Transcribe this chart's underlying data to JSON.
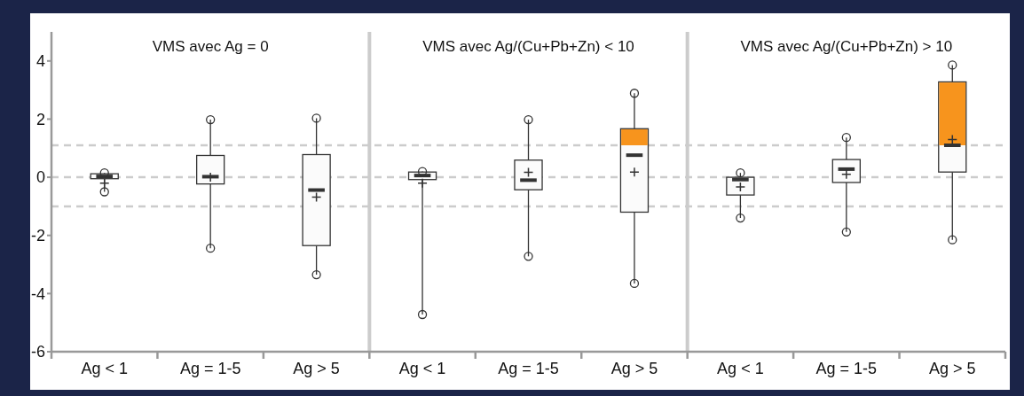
{
  "chart_data": {
    "type": "box",
    "categories": [
      "Ag < 1",
      "Ag = 1-5",
      "Ag > 5",
      "Ag < 1",
      "Ag = 1-5",
      "Ag > 5",
      "Ag < 1",
      "Ag = 1-5",
      "Ag > 5"
    ],
    "boxes": [
      {
        "low": -0.5,
        "q1": -0.05,
        "median": 0.03,
        "q3": 0.12,
        "high": 0.15,
        "mean": -0.2
      },
      {
        "low": -2.44,
        "q1": -0.23,
        "median": 0.02,
        "q3": 0.75,
        "high": 1.98,
        "mean": 0.0
      },
      {
        "low": -3.35,
        "q1": -2.35,
        "median": -0.44,
        "q3": 0.78,
        "high": 2.03,
        "mean": -0.68
      },
      {
        "low": -4.72,
        "q1": -0.08,
        "median": 0.06,
        "q3": 0.18,
        "high": 0.2,
        "mean": -0.2
      },
      {
        "low": -2.72,
        "q1": -0.43,
        "median": -0.1,
        "q3": 0.59,
        "high": 1.98,
        "mean": 0.17
      },
      {
        "low": -3.65,
        "q1": -1.2,
        "median": 0.76,
        "q3": 1.67,
        "high": 2.89,
        "mean": 0.18
      },
      {
        "low": -1.4,
        "q1": -0.61,
        "median": -0.08,
        "q3": 0.0,
        "high": 0.15,
        "mean": -0.33
      },
      {
        "low": -1.88,
        "q1": -0.18,
        "median": 0.28,
        "q3": 0.61,
        "high": 1.37,
        "mean": 0.1
      },
      {
        "low": -2.15,
        "q1": 0.18,
        "median": 1.1,
        "q3": 3.28,
        "high": 3.86,
        "mean": 1.3
      }
    ],
    "color": "#333333",
    "ylim": [
      -6,
      5
    ],
    "yticks": [
      -6,
      -4,
      -2,
      0,
      2,
      4
    ],
    "ref_lines": [
      {
        "axis": "y",
        "value": 1.1,
        "color": "#cccccc",
        "line_style": "dashed"
      },
      {
        "axis": "y",
        "value": 0,
        "color": "#cccccc",
        "line_style": "dashed"
      },
      {
        "axis": "y",
        "value": -1,
        "color": "#cccccc",
        "line_style": "dashed"
      }
    ],
    "annotations": [
      "VMS avec Ag = 0",
      "VMS avec Ag/(Cu+Pb+Zn) < 10",
      "VMS avec Ag/(Cu+Pb+Zn) > 10"
    ]
  }
}
